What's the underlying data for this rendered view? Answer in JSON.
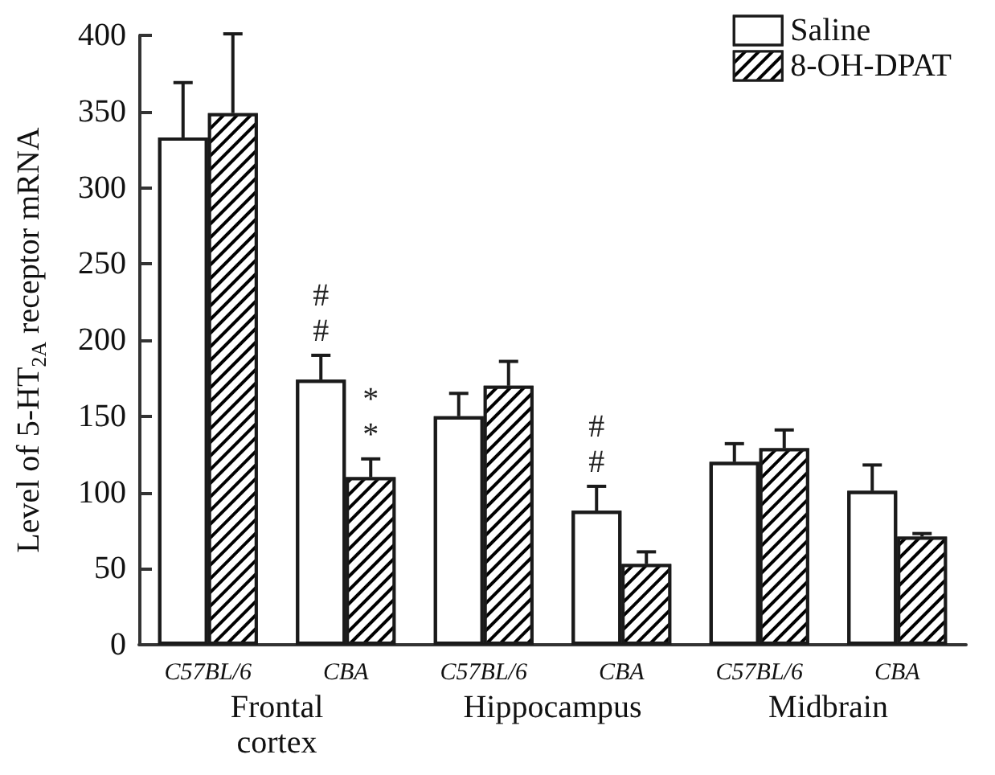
{
  "chart_data": {
    "type": "bar",
    "ylabel": "Level of 5-HT$_{2A}$ receptor mRNA",
    "categories": [
      "C57BL/6",
      "CBA",
      "C57BL/6",
      "CBA",
      "C57BL/6",
      "CBA"
    ],
    "series": [
      {
        "name": "Saline",
        "color": "#ffffff",
        "values": [
          333,
          174,
          150,
          88,
          120,
          101
        ],
        "errors": [
          [
            333,
            369
          ],
          [
            174,
            190
          ],
          [
            150,
            165
          ],
          [
            88,
            104
          ],
          [
            120,
            132
          ],
          [
            101,
            118
          ]
        ],
        "value_labels": [
          null,
          "#\n#",
          null,
          "#\n#",
          null,
          null
        ]
      },
      {
        "name": "8-OH-DPAT",
        "color": "#000000",
        "values": [
          349,
          110,
          170,
          53,
          129,
          71
        ],
        "errors": [
          [
            349,
            401
          ],
          [
            110,
            122
          ],
          [
            170,
            186
          ],
          [
            53,
            61
          ],
          [
            129,
            141
          ],
          [
            71,
            73
          ]
        ],
        "value_labels": [
          null,
          "*\n*",
          null,
          null,
          null,
          null
        ]
      }
    ],
    "annotations": [
      "Frontal\ncortex",
      "Hippocampus",
      "Midbrain"
    ],
    "ylim": [
      0,
      400
    ],
    "yticks": [
      0,
      50,
      100,
      150,
      200,
      250,
      300,
      350,
      400
    ],
    "grid": false,
    "legend": "top right"
  }
}
